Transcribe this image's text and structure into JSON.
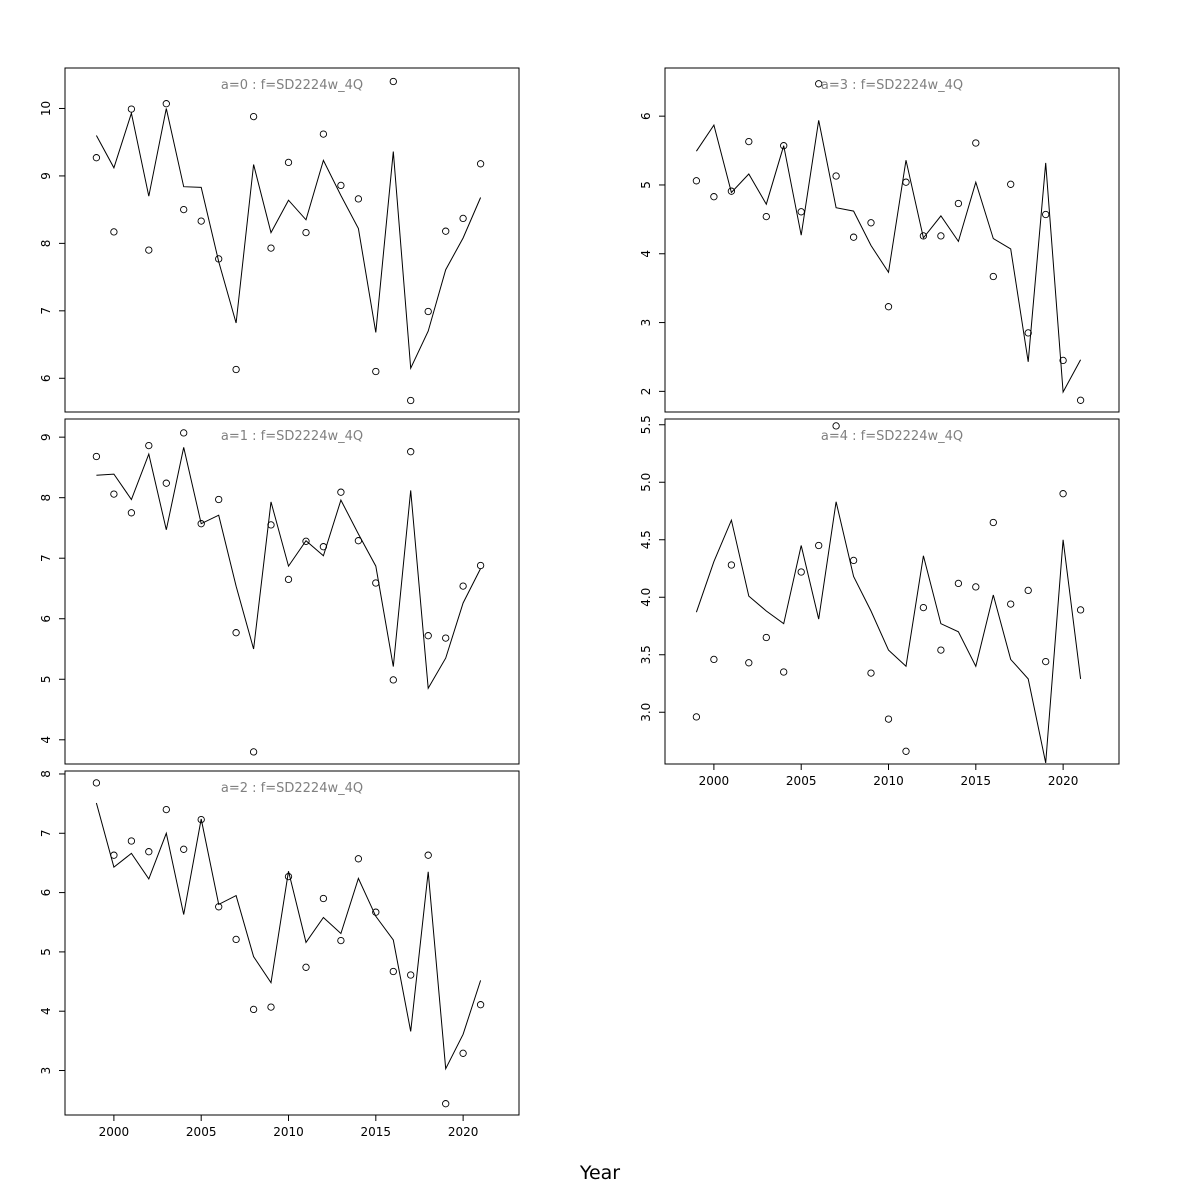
{
  "figure": {
    "xlabel": "Year"
  },
  "chart_data": [
    {
      "type": "line",
      "title": "a=0  :  f=SD2224w_4Q",
      "x": [
        1999,
        2000,
        2001,
        2002,
        2003,
        2004,
        2005,
        2006,
        2007,
        2008,
        2009,
        2010,
        2011,
        2012,
        2013,
        2014,
        2015,
        2016,
        2017,
        2018,
        2019,
        2020,
        2021
      ],
      "series": [
        {
          "kind": "points",
          "values": [
            9.27,
            8.17,
            9.99,
            7.9,
            10.07,
            8.5,
            8.33,
            7.77,
            6.13,
            9.88,
            7.93,
            9.2,
            8.16,
            9.62,
            8.86,
            8.66,
            6.1,
            10.4,
            5.67,
            6.99,
            8.18,
            8.37,
            9.18
          ]
        },
        {
          "kind": "line",
          "values": [
            9.6,
            9.12,
            9.93,
            8.7,
            10.0,
            8.84,
            8.83,
            7.73,
            6.82,
            9.17,
            8.16,
            8.64,
            8.35,
            9.23,
            8.71,
            8.22,
            6.68,
            9.36,
            6.15,
            6.7,
            7.61,
            8.08,
            8.68
          ]
        }
      ],
      "xlim": [
        1997.2,
        2023.2
      ],
      "ylim": [
        5.5,
        10.6
      ],
      "yticks": [
        6,
        7,
        8,
        9,
        10
      ],
      "xticks": [],
      "grid": false
    },
    {
      "type": "line",
      "title": "a=1  :  f=SD2224w_4Q",
      "x": [
        1999,
        2000,
        2001,
        2002,
        2003,
        2004,
        2005,
        2006,
        2007,
        2008,
        2009,
        2010,
        2011,
        2012,
        2013,
        2014,
        2015,
        2016,
        2017,
        2018,
        2019,
        2020,
        2021
      ],
      "series": [
        {
          "kind": "points",
          "values": [
            8.68,
            8.06,
            7.75,
            8.86,
            8.24,
            9.07,
            7.57,
            7.97,
            5.77,
            3.8,
            7.55,
            6.65,
            7.28,
            7.19,
            8.09,
            7.29,
            6.59,
            4.99,
            8.76,
            5.72,
            5.68,
            6.54,
            6.88
          ]
        },
        {
          "kind": "line",
          "values": [
            8.37,
            8.39,
            7.97,
            8.72,
            7.47,
            8.83,
            7.57,
            7.71,
            6.54,
            5.5,
            7.93,
            6.87,
            7.29,
            7.04,
            7.96,
            7.4,
            6.87,
            5.21,
            8.12,
            4.85,
            5.35,
            6.26,
            6.83
          ]
        }
      ],
      "xlim": [
        1997.2,
        2023.2
      ],
      "ylim": [
        3.6,
        9.3
      ],
      "yticks": [
        4,
        5,
        6,
        7,
        8,
        9
      ],
      "xticks": [],
      "grid": false
    },
    {
      "type": "line",
      "title": "a=2  :  f=SD2224w_4Q",
      "x": [
        1999,
        2000,
        2001,
        2002,
        2003,
        2004,
        2005,
        2006,
        2007,
        2008,
        2009,
        2010,
        2011,
        2012,
        2013,
        2014,
        2015,
        2016,
        2017,
        2018,
        2019,
        2020,
        2021
      ],
      "series": [
        {
          "kind": "points",
          "values": [
            7.85,
            6.63,
            6.87,
            6.69,
            7.4,
            6.73,
            7.23,
            5.76,
            5.21,
            4.03,
            4.07,
            6.27,
            4.74,
            5.9,
            5.19,
            6.57,
            5.67,
            4.67,
            4.61,
            6.63,
            2.44,
            3.29,
            4.11
          ]
        },
        {
          "kind": "line",
          "values": [
            7.51,
            6.43,
            6.66,
            6.23,
            7.0,
            5.63,
            7.24,
            5.8,
            5.95,
            4.92,
            4.48,
            6.36,
            5.16,
            5.58,
            5.31,
            6.24,
            5.6,
            5.2,
            3.66,
            6.35,
            3.03,
            3.61,
            4.52
          ]
        }
      ],
      "xlim": [
        1997.2,
        2023.2
      ],
      "ylim": [
        2.25,
        8.05
      ],
      "yticks": [
        3,
        4,
        5,
        6,
        7,
        8
      ],
      "xticks": [
        2000,
        2005,
        2010,
        2015,
        2020
      ],
      "grid": false
    },
    {
      "type": "line",
      "title": "a=3  :  f=SD2224w_4Q",
      "x": [
        1999,
        2000,
        2001,
        2002,
        2003,
        2004,
        2005,
        2006,
        2007,
        2008,
        2009,
        2010,
        2011,
        2012,
        2013,
        2014,
        2015,
        2016,
        2017,
        2018,
        2019,
        2020,
        2021
      ],
      "series": [
        {
          "kind": "points",
          "values": [
            5.06,
            4.83,
            4.91,
            5.63,
            4.54,
            5.57,
            4.61,
            6.47,
            5.13,
            4.24,
            4.45,
            3.23,
            5.04,
            4.26,
            4.26,
            4.73,
            5.61,
            3.67,
            5.01,
            2.85,
            4.57,
            2.45,
            1.87
          ]
        },
        {
          "kind": "line",
          "values": [
            5.49,
            5.87,
            4.89,
            5.16,
            4.72,
            5.57,
            4.27,
            5.94,
            4.67,
            4.62,
            4.12,
            3.73,
            5.36,
            4.23,
            4.55,
            4.18,
            5.04,
            4.22,
            4.07,
            2.43,
            5.32,
            1.99,
            2.46
          ]
        }
      ],
      "xlim": [
        1997.2,
        2023.2
      ],
      "ylim": [
        1.7,
        6.7
      ],
      "yticks": [
        2,
        3,
        4,
        5,
        6
      ],
      "xticks": [],
      "grid": false
    },
    {
      "type": "line",
      "title": "a=4  :  f=SD2224w_4Q",
      "x": [
        1999,
        2000,
        2001,
        2002,
        2003,
        2004,
        2005,
        2006,
        2007,
        2008,
        2009,
        2010,
        2011,
        2012,
        2013,
        2014,
        2015,
        2016,
        2017,
        2018,
        2019,
        2020,
        2021
      ],
      "series": [
        {
          "kind": "points",
          "values": [
            2.96,
            3.46,
            4.28,
            3.43,
            3.65,
            3.35,
            4.22,
            4.45,
            5.49,
            4.32,
            3.34,
            2.94,
            2.66,
            3.91,
            3.54,
            4.12,
            4.09,
            4.65,
            3.94,
            4.06,
            3.44,
            4.9,
            3.89
          ]
        },
        {
          "kind": "line",
          "values": [
            3.87,
            4.31,
            4.67,
            4.01,
            3.88,
            3.77,
            4.45,
            3.81,
            4.83,
            4.18,
            3.88,
            3.54,
            3.4,
            4.36,
            3.77,
            3.7,
            3.4,
            4.02,
            3.46,
            3.29,
            2.56,
            4.5,
            3.29
          ]
        }
      ],
      "xlim": [
        1997.2,
        2023.2
      ],
      "ylim": [
        2.55,
        5.55
      ],
      "yticks": [
        3.0,
        3.5,
        4.0,
        4.5,
        5.0,
        5.5
      ],
      "ytick_labels": [
        "3.0",
        "3.5",
        "4.0",
        "4.5",
        "5.0",
        "5.5"
      ],
      "xticks": [
        2000,
        2005,
        2010,
        2015,
        2020
      ],
      "grid": false
    }
  ]
}
